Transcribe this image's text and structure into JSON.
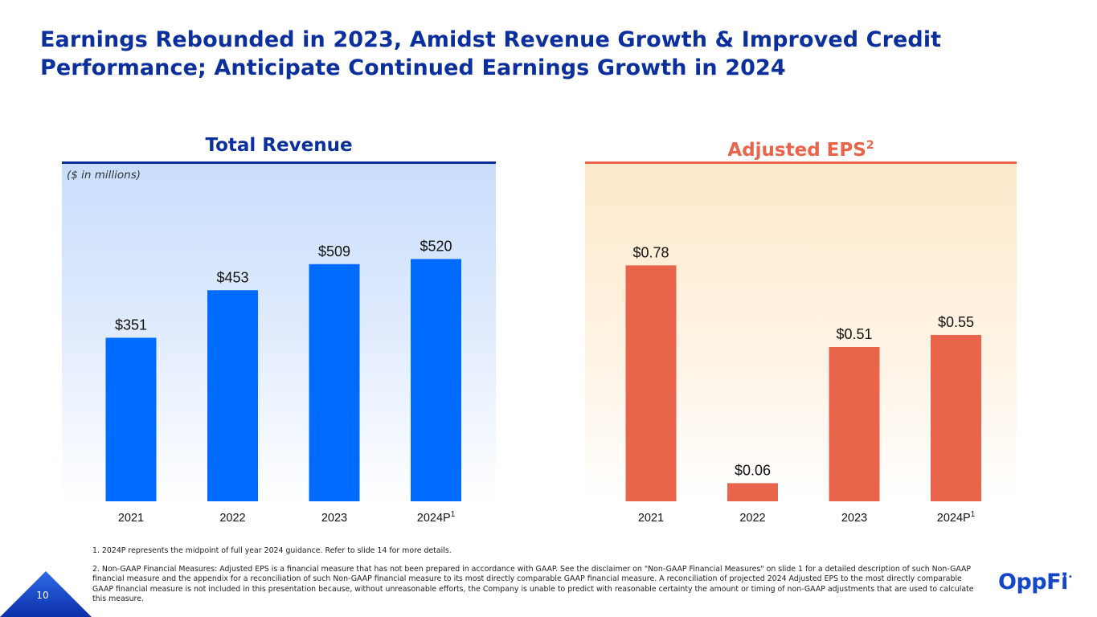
{
  "slide": {
    "title": "Earnings Rebounded in 2023, Amidst Revenue Growth & Improved Credit Performance; Anticipate Continued Earnings Growth in 2024",
    "page_number": "10",
    "logo_text": "OppFi",
    "logo_dots": "••"
  },
  "colors": {
    "title": "#0c2f9e",
    "revenue_bar": "#006cff",
    "eps_bar": "#e8644b",
    "eps_title": "#e8644b"
  },
  "footnotes": [
    "1. 2024P represents the midpoint of full year 2024 guidance. Refer to slide 14 for more details.",
    "2. Non-GAAP Financial Measures: Adjusted EPS is a financial measure that has not been prepared in accordance with GAAP. See the disclaimer on \"Non-GAAP Financial Measures\" on slide 1 for a detailed description of such Non-GAAP financial measure and the appendix for a reconciliation of such Non-GAAP financial measure to its most directly comparable GAAP financial measure. A reconciliation of projected 2024 Adjusted EPS to the most directly comparable GAAP financial measure is not included in this presentation because, without unreasonable efforts, the Company is unable to predict with reasonable certainty the amount or timing of non-GAAP adjustments that are used to calculate this measure."
  ],
  "chart_data": [
    {
      "type": "bar",
      "title": "Total Revenue",
      "subtitle": "($ in millions)",
      "categories": [
        "2021",
        "2022",
        "2023",
        "2024P"
      ],
      "category_superscripts": [
        "",
        "",
        "",
        "1"
      ],
      "values": [
        351,
        453,
        509,
        520
      ],
      "data_labels": [
        "$351",
        "$453",
        "$509",
        "$520"
      ],
      "xlabel": "",
      "ylabel": "",
      "ylim": [
        0,
        600
      ],
      "grid": false,
      "legend": "none"
    },
    {
      "type": "bar",
      "title": "Adjusted EPS",
      "title_superscript": "2",
      "subtitle": "",
      "categories": [
        "2021",
        "2022",
        "2023",
        "2024P"
      ],
      "category_superscripts": [
        "",
        "",
        "",
        "1"
      ],
      "values": [
        0.78,
        0.06,
        0.51,
        0.55
      ],
      "data_labels": [
        "$0.78",
        "$0.06",
        "$0.51",
        "$0.55"
      ],
      "xlabel": "",
      "ylabel": "",
      "ylim": [
        0,
        0.85
      ],
      "grid": false,
      "legend": "none"
    }
  ]
}
